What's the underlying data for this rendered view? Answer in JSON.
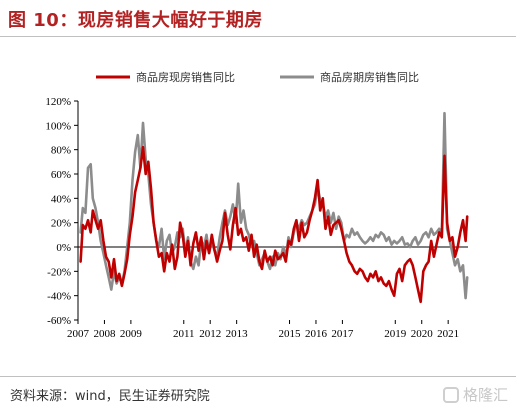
{
  "figure": {
    "title": "图 10：现房销售大幅好于期房",
    "source": "资料来源：wind，民生证券研究院",
    "watermark": "格隆汇"
  },
  "colors": {
    "title": "#b22222",
    "series_current": "#c00000",
    "series_forward": "#8c8c8c"
  },
  "chart_data": {
    "type": "line",
    "legend_position": "top",
    "grid": false,
    "xlabel": "",
    "ylabel": "",
    "x_range": [
      2007.0,
      2021.75
    ],
    "ylim": [
      -60,
      120
    ],
    "y_ticks": [
      -60,
      -40,
      -20,
      0,
      20,
      40,
      60,
      80,
      100,
      120
    ],
    "y_tick_labels": [
      "-60%",
      "-40%",
      "-20%",
      "0%",
      "20%",
      "40%",
      "60%",
      "80%",
      "100%",
      "120%"
    ],
    "x_ticks": [
      2007,
      2008,
      2009,
      2011,
      2012,
      2013,
      2015,
      2016,
      2017,
      2019,
      2020,
      2021
    ],
    "x_tick_labels": [
      "2007",
      "2008",
      "2009",
      "2011",
      "2012",
      "2013",
      "2015",
      "2016",
      "2017",
      "2019",
      "2020",
      "2021"
    ],
    "series": [
      {
        "name": "商品房现房销售同比",
        "color": "#c00000",
        "points": [
          [
            2007.1,
            -12
          ],
          [
            2007.18,
            18
          ],
          [
            2007.28,
            15
          ],
          [
            2007.38,
            22
          ],
          [
            2007.48,
            12
          ],
          [
            2007.56,
            30
          ],
          [
            2007.66,
            22
          ],
          [
            2007.76,
            15
          ],
          [
            2007.86,
            22
          ],
          [
            2007.96,
            5
          ],
          [
            2008.06,
            -8
          ],
          [
            2008.16,
            -12
          ],
          [
            2008.26,
            -25
          ],
          [
            2008.36,
            -10
          ],
          [
            2008.46,
            -28
          ],
          [
            2008.56,
            -22
          ],
          [
            2008.66,
            -32
          ],
          [
            2008.76,
            -22
          ],
          [
            2008.86,
            -10
          ],
          [
            2008.96,
            10
          ],
          [
            2009.06,
            25
          ],
          [
            2009.16,
            45
          ],
          [
            2009.26,
            55
          ],
          [
            2009.36,
            65
          ],
          [
            2009.46,
            82
          ],
          [
            2009.56,
            60
          ],
          [
            2009.66,
            70
          ],
          [
            2009.76,
            48
          ],
          [
            2009.86,
            20
          ],
          [
            2009.96,
            5
          ],
          [
            2010.06,
            -8
          ],
          [
            2010.16,
            -5
          ],
          [
            2010.26,
            -20
          ],
          [
            2010.36,
            -5
          ],
          [
            2010.46,
            -12
          ],
          [
            2010.56,
            2
          ],
          [
            2010.66,
            -18
          ],
          [
            2010.76,
            -8
          ],
          [
            2010.86,
            20
          ],
          [
            2010.96,
            10
          ],
          [
            2011.06,
            -8
          ],
          [
            2011.16,
            5
          ],
          [
            2011.26,
            -15
          ],
          [
            2011.36,
            3
          ],
          [
            2011.46,
            12
          ],
          [
            2011.56,
            -3
          ],
          [
            2011.66,
            8
          ],
          [
            2011.76,
            -10
          ],
          [
            2011.86,
            5
          ],
          [
            2011.96,
            -5
          ],
          [
            2012.06,
            10
          ],
          [
            2012.16,
            -2
          ],
          [
            2012.26,
            -12
          ],
          [
            2012.36,
            -3
          ],
          [
            2012.46,
            5
          ],
          [
            2012.56,
            28
          ],
          [
            2012.66,
            10
          ],
          [
            2012.76,
            -2
          ],
          [
            2012.86,
            18
          ],
          [
            2012.96,
            32
          ],
          [
            2013.06,
            10
          ],
          [
            2013.16,
            15
          ],
          [
            2013.26,
            5
          ],
          [
            2013.36,
            8
          ],
          [
            2013.46,
            -3
          ],
          [
            2013.56,
            10
          ],
          [
            2013.66,
            -8
          ],
          [
            2013.76,
            2
          ],
          [
            2013.86,
            -12
          ],
          [
            2013.96,
            -18
          ],
          [
            2014.06,
            -3
          ],
          [
            2014.16,
            -12
          ],
          [
            2014.26,
            -8
          ],
          [
            2014.36,
            -15
          ],
          [
            2014.46,
            -3
          ],
          [
            2014.56,
            -10
          ],
          [
            2014.66,
            -8
          ],
          [
            2014.76,
            -5
          ],
          [
            2014.86,
            -12
          ],
          [
            2014.96,
            5
          ],
          [
            2015.06,
            2
          ],
          [
            2015.16,
            15
          ],
          [
            2015.26,
            22
          ],
          [
            2015.36,
            5
          ],
          [
            2015.46,
            20
          ],
          [
            2015.56,
            8
          ],
          [
            2015.66,
            12
          ],
          [
            2015.76,
            22
          ],
          [
            2015.86,
            30
          ],
          [
            2015.96,
            40
          ],
          [
            2016.06,
            55
          ],
          [
            2016.16,
            30
          ],
          [
            2016.26,
            40
          ],
          [
            2016.36,
            15
          ],
          [
            2016.46,
            25
          ],
          [
            2016.56,
            10
          ],
          [
            2016.66,
            18
          ],
          [
            2016.76,
            20
          ],
          [
            2016.86,
            22
          ],
          [
            2016.96,
            15
          ],
          [
            2017.06,
            5
          ],
          [
            2017.16,
            -5
          ],
          [
            2017.26,
            -12
          ],
          [
            2017.36,
            -15
          ],
          [
            2017.46,
            -20
          ],
          [
            2017.56,
            -22
          ],
          [
            2017.66,
            -18
          ],
          [
            2017.76,
            -20
          ],
          [
            2017.86,
            -25
          ],
          [
            2017.96,
            -28
          ],
          [
            2018.06,
            -22
          ],
          [
            2018.16,
            -25
          ],
          [
            2018.26,
            -20
          ],
          [
            2018.36,
            -28
          ],
          [
            2018.46,
            -25
          ],
          [
            2018.56,
            -30
          ],
          [
            2018.66,
            -32
          ],
          [
            2018.76,
            -28
          ],
          [
            2018.86,
            -35
          ],
          [
            2018.96,
            -40
          ],
          [
            2019.06,
            -22
          ],
          [
            2019.16,
            -18
          ],
          [
            2019.26,
            -28
          ],
          [
            2019.36,
            -15
          ],
          [
            2019.46,
            -12
          ],
          [
            2019.56,
            -10
          ],
          [
            2019.66,
            -15
          ],
          [
            2019.76,
            -25
          ],
          [
            2019.86,
            -35
          ],
          [
            2019.96,
            -45
          ],
          [
            2020.06,
            -20
          ],
          [
            2020.16,
            -15
          ],
          [
            2020.26,
            -12
          ],
          [
            2020.36,
            5
          ],
          [
            2020.46,
            -8
          ],
          [
            2020.56,
            2
          ],
          [
            2020.66,
            12
          ],
          [
            2020.76,
            8
          ],
          [
            2020.86,
            75
          ],
          [
            2020.96,
            20
          ],
          [
            2021.06,
            5
          ],
          [
            2021.16,
            8
          ],
          [
            2021.26,
            -8
          ],
          [
            2021.36,
            0
          ],
          [
            2021.46,
            12
          ],
          [
            2021.56,
            22
          ],
          [
            2021.66,
            5
          ],
          [
            2021.72,
            25
          ]
        ]
      },
      {
        "name": "商品房期房销售同比",
        "color": "#8c8c8c",
        "points": [
          [
            2007.1,
            12
          ],
          [
            2007.18,
            32
          ],
          [
            2007.28,
            28
          ],
          [
            2007.38,
            65
          ],
          [
            2007.48,
            68
          ],
          [
            2007.56,
            40
          ],
          [
            2007.66,
            32
          ],
          [
            2007.76,
            20
          ],
          [
            2007.86,
            5
          ],
          [
            2007.96,
            -5
          ],
          [
            2008.06,
            -15
          ],
          [
            2008.16,
            -25
          ],
          [
            2008.26,
            -35
          ],
          [
            2008.36,
            -20
          ],
          [
            2008.46,
            -30
          ],
          [
            2008.56,
            -25
          ],
          [
            2008.66,
            -30
          ],
          [
            2008.76,
            -20
          ],
          [
            2008.86,
            0
          ],
          [
            2008.96,
            20
          ],
          [
            2009.06,
            55
          ],
          [
            2009.16,
            78
          ],
          [
            2009.26,
            92
          ],
          [
            2009.36,
            65
          ],
          [
            2009.46,
            102
          ],
          [
            2009.56,
            72
          ],
          [
            2009.66,
            60
          ],
          [
            2009.76,
            35
          ],
          [
            2009.86,
            20
          ],
          [
            2009.96,
            5
          ],
          [
            2010.06,
            0
          ],
          [
            2010.16,
            15
          ],
          [
            2010.26,
            -10
          ],
          [
            2010.36,
            5
          ],
          [
            2010.46,
            10
          ],
          [
            2010.56,
            -5
          ],
          [
            2010.66,
            0
          ],
          [
            2010.76,
            12
          ],
          [
            2010.86,
            8
          ],
          [
            2010.96,
            15
          ],
          [
            2011.06,
            -5
          ],
          [
            2011.16,
            8
          ],
          [
            2011.26,
            -12
          ],
          [
            2011.36,
            -18
          ],
          [
            2011.46,
            -8
          ],
          [
            2011.56,
            -15
          ],
          [
            2011.66,
            5
          ],
          [
            2011.76,
            0
          ],
          [
            2011.86,
            10
          ],
          [
            2011.96,
            -5
          ],
          [
            2012.06,
            5
          ],
          [
            2012.16,
            -3
          ],
          [
            2012.26,
            -8
          ],
          [
            2012.36,
            8
          ],
          [
            2012.46,
            20
          ],
          [
            2012.56,
            30
          ],
          [
            2012.66,
            18
          ],
          [
            2012.76,
            25
          ],
          [
            2012.86,
            35
          ],
          [
            2012.96,
            20
          ],
          [
            2013.06,
            52
          ],
          [
            2013.16,
            20
          ],
          [
            2013.26,
            30
          ],
          [
            2013.36,
            15
          ],
          [
            2013.46,
            10
          ],
          [
            2013.56,
            0
          ],
          [
            2013.66,
            5
          ],
          [
            2013.76,
            -5
          ],
          [
            2013.86,
            -15
          ],
          [
            2013.96,
            -10
          ],
          [
            2014.06,
            -5
          ],
          [
            2014.16,
            -12
          ],
          [
            2014.26,
            -18
          ],
          [
            2014.36,
            -8
          ],
          [
            2014.46,
            -15
          ],
          [
            2014.56,
            -5
          ],
          [
            2014.66,
            -10
          ],
          [
            2014.76,
            0
          ],
          [
            2014.86,
            -8
          ],
          [
            2014.96,
            8
          ],
          [
            2015.06,
            0
          ],
          [
            2015.16,
            12
          ],
          [
            2015.26,
            20
          ],
          [
            2015.36,
            15
          ],
          [
            2015.46,
            22
          ],
          [
            2015.56,
            18
          ],
          [
            2015.66,
            20
          ],
          [
            2015.76,
            25
          ],
          [
            2015.86,
            30
          ],
          [
            2015.96,
            35
          ],
          [
            2016.06,
            50
          ],
          [
            2016.16,
            38
          ],
          [
            2016.26,
            35
          ],
          [
            2016.36,
            25
          ],
          [
            2016.46,
            30
          ],
          [
            2016.56,
            20
          ],
          [
            2016.66,
            28
          ],
          [
            2016.76,
            15
          ],
          [
            2016.86,
            25
          ],
          [
            2016.96,
            20
          ],
          [
            2017.06,
            5
          ],
          [
            2017.16,
            10
          ],
          [
            2017.26,
            8
          ],
          [
            2017.36,
            15
          ],
          [
            2017.46,
            10
          ],
          [
            2017.56,
            12
          ],
          [
            2017.66,
            8
          ],
          [
            2017.76,
            5
          ],
          [
            2017.86,
            3
          ],
          [
            2017.96,
            5
          ],
          [
            2018.06,
            8
          ],
          [
            2018.16,
            5
          ],
          [
            2018.26,
            10
          ],
          [
            2018.36,
            8
          ],
          [
            2018.46,
            12
          ],
          [
            2018.56,
            10
          ],
          [
            2018.66,
            5
          ],
          [
            2018.76,
            8
          ],
          [
            2018.86,
            2
          ],
          [
            2018.96,
            5
          ],
          [
            2019.06,
            3
          ],
          [
            2019.16,
            5
          ],
          [
            2019.26,
            8
          ],
          [
            2019.36,
            2
          ],
          [
            2019.46,
            3
          ],
          [
            2019.56,
            0
          ],
          [
            2019.66,
            5
          ],
          [
            2019.76,
            8
          ],
          [
            2019.86,
            2
          ],
          [
            2019.96,
            5
          ],
          [
            2020.06,
            10
          ],
          [
            2020.16,
            12
          ],
          [
            2020.26,
            8
          ],
          [
            2020.36,
            15
          ],
          [
            2020.46,
            10
          ],
          [
            2020.56,
            12
          ],
          [
            2020.66,
            15
          ],
          [
            2020.76,
            10
          ],
          [
            2020.86,
            110
          ],
          [
            2020.96,
            15
          ],
          [
            2021.06,
            5
          ],
          [
            2021.16,
            -5
          ],
          [
            2021.26,
            -15
          ],
          [
            2021.36,
            -10
          ],
          [
            2021.46,
            -20
          ],
          [
            2021.56,
            -15
          ],
          [
            2021.66,
            -42
          ],
          [
            2021.72,
            -25
          ]
        ]
      }
    ]
  }
}
